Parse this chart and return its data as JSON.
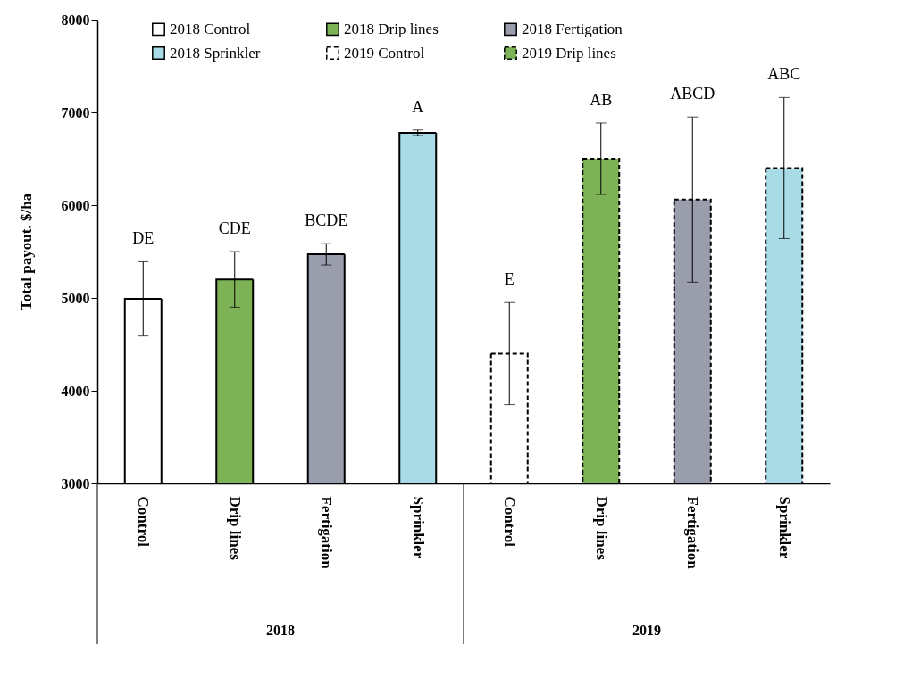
{
  "chart_data": {
    "type": "bar",
    "ylabel": "Total payout. $/ha",
    "categories": [
      "Control",
      "Drip lines",
      "Fertigation",
      "Sprinkler",
      "Control",
      "Drip lines",
      "Fertigation",
      "Sprinkler"
    ],
    "series": [
      {
        "name": "2018 Control",
        "color": "#ffffff",
        "line_style": "solid",
        "values": [
          4990,
          null,
          null,
          null,
          null,
          null,
          null,
          null
        ],
        "errors": [
          400,
          null,
          null,
          null,
          null,
          null,
          null,
          null
        ]
      },
      {
        "name": "2018 Drip lines",
        "color": "#7db356",
        "line_style": "solid",
        "values": [
          null,
          5200,
          null,
          null,
          null,
          null,
          null,
          null
        ],
        "errors": [
          null,
          300,
          null,
          null,
          null,
          null,
          null,
          null
        ]
      },
      {
        "name": "2018 Fertigation",
        "color": "#9a9eac",
        "line_style": "solid",
        "values": [
          null,
          null,
          5470,
          null,
          null,
          null,
          null,
          null
        ],
        "errors": [
          null,
          null,
          115,
          null,
          null,
          null,
          null,
          null
        ]
      },
      {
        "name": "2018 Sprinkler",
        "color": "#a8dbe6",
        "line_style": "solid",
        "values": [
          null,
          null,
          null,
          6780,
          null,
          null,
          null,
          null
        ],
        "errors": [
          null,
          null,
          null,
          30,
          null,
          null,
          null,
          null
        ]
      },
      {
        "name": "2019 Control",
        "color": "#ffffff",
        "line_style": "dashed",
        "values": [
          null,
          null,
          null,
          null,
          4400,
          null,
          null,
          null
        ],
        "errors": [
          null,
          null,
          null,
          null,
          550,
          null,
          null,
          null
        ]
      },
      {
        "name": "2019 Drip lines",
        "color": "#7db356",
        "line_style": "dashed",
        "values": [
          null,
          null,
          null,
          null,
          null,
          6500,
          null,
          null
        ],
        "errors": [
          null,
          null,
          null,
          null,
          null,
          385,
          null,
          null
        ]
      },
      {
        "color": "#9a9eac",
        "line_style": "dashed",
        "values": [
          null,
          null,
          null,
          null,
          null,
          null,
          6060,
          null
        ],
        "errors": [
          null,
          null,
          null,
          null,
          null,
          null,
          890,
          null
        ]
      },
      {
        "color": "#a8dbe6",
        "line_style": "dashed",
        "values": [
          null,
          null,
          null,
          null,
          null,
          null,
          null,
          6400
        ],
        "errors": [
          null,
          null,
          null,
          null,
          null,
          null,
          null,
          760
        ]
      }
    ],
    "annotations": [
      "DE",
      "CDE",
      "BCDE",
      "A",
      "E",
      "AB",
      "ABCD",
      "ABC",
      "2018",
      "2019"
    ],
    "ylim": [
      3000,
      8000
    ],
    "yticks": [
      3000,
      4000,
      5000,
      6000,
      7000,
      8000
    ],
    "grid": false,
    "legend": "top"
  }
}
